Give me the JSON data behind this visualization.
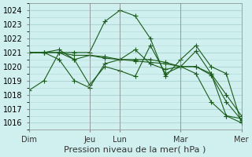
{
  "title": "",
  "xlabel": "Pression niveau de la mer( hPa )",
  "ylabel": "",
  "bg_color": "#d0efef",
  "grid_color": "#b0d8d8",
  "line_color": "#1a5c1a",
  "ylim": [
    1015.5,
    1024.5
  ],
  "yticks": [
    1016,
    1017,
    1018,
    1019,
    1020,
    1021,
    1022,
    1023,
    1024
  ],
  "day_labels": [
    "Dim",
    "Jeu",
    "Lun",
    "Mar",
    "Mer"
  ],
  "day_positions": [
    0,
    48,
    72,
    120,
    168
  ],
  "series1": {
    "x": [
      0,
      12,
      24,
      36,
      48,
      60,
      72,
      84,
      96,
      108,
      120,
      132,
      144,
      156,
      168
    ],
    "y": [
      1018.3,
      1019.0,
      1021.0,
      1021.0,
      1021.0,
      1023.2,
      1024.0,
      1023.6,
      1022.0,
      1019.3,
      1020.5,
      1021.5,
      1020.0,
      1019.5,
      1016.0
    ]
  },
  "series2": {
    "x": [
      0,
      12,
      24,
      36,
      48,
      60,
      72,
      84,
      96,
      108,
      120,
      132,
      144,
      156,
      168
    ],
    "y": [
      1021.0,
      1021.0,
      1021.0,
      1020.5,
      1020.8,
      1020.7,
      1020.5,
      1020.5,
      1020.5,
      1020.3,
      1020.0,
      1020.0,
      1019.5,
      1018.0,
      1016.5
    ]
  },
  "series3": {
    "x": [
      0,
      12,
      24,
      36,
      48,
      60,
      72,
      84,
      96,
      108,
      120,
      132,
      144,
      156,
      168
    ],
    "y": [
      1021.0,
      1021.0,
      1021.0,
      1020.8,
      1020.8,
      1020.6,
      1020.5,
      1020.4,
      1020.3,
      1020.2,
      1020.0,
      1020.0,
      1019.4,
      1017.5,
      1016.2
    ]
  },
  "series4": {
    "x": [
      0,
      12,
      24,
      36,
      48,
      60,
      72,
      84,
      96,
      108,
      120,
      132,
      144,
      156,
      168
    ],
    "y": [
      1021.0,
      1021.0,
      1021.2,
      1020.5,
      1018.7,
      1020.0,
      1019.7,
      1019.3,
      1021.5,
      1019.5,
      1020.0,
      1021.1,
      1019.5,
      1016.5,
      1016.3
    ]
  },
  "series5": {
    "x": [
      0,
      12,
      24,
      36,
      48,
      60,
      72,
      84,
      96,
      108,
      120,
      132,
      144,
      156,
      168
    ],
    "y": [
      1021.0,
      1021.0,
      1020.5,
      1019.0,
      1018.5,
      1020.2,
      1020.5,
      1021.2,
      1020.2,
      1019.8,
      1020.0,
      1019.5,
      1017.5,
      1016.5,
      1016.0
    ]
  }
}
